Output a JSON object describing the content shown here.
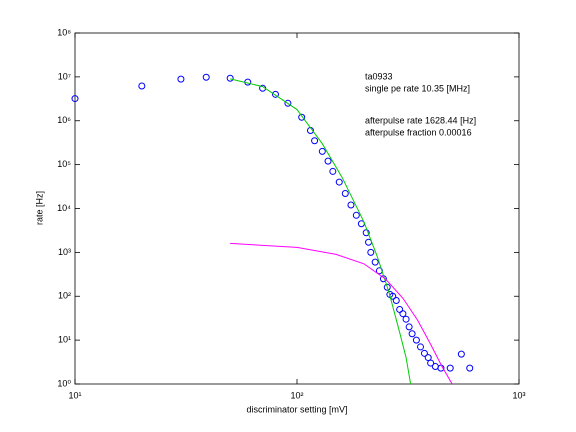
{
  "chart_data": {
    "type": "scatter",
    "xlabel": "discriminator setting [mV]",
    "ylabel": "rate [Hz]",
    "xscale": "log",
    "yscale": "log",
    "xlim": [
      10,
      1000
    ],
    "ylim": [
      1,
      100000000
    ],
    "xticks": [
      {
        "value": 10,
        "label": "10¹"
      },
      {
        "value": 100,
        "label": "10²"
      },
      {
        "value": 1000,
        "label": "10³"
      }
    ],
    "yticks": [
      {
        "value": 1,
        "label": "10⁰"
      },
      {
        "value": 10,
        "label": "10¹"
      },
      {
        "value": 100,
        "label": "10²"
      },
      {
        "value": 1000,
        "label": "10³"
      },
      {
        "value": 10000,
        "label": "10⁴"
      },
      {
        "value": 100000,
        "label": "10⁵"
      },
      {
        "value": 1000000,
        "label": "10⁶"
      },
      {
        "value": 10000000,
        "label": "10⁷"
      },
      {
        "value": 100000000,
        "label": "10⁸"
      }
    ],
    "annotations": [
      "ta0933",
      "single pe rate 10.35 [MHz]",
      "afterpulse rate 1628.44 [Hz]",
      "afterpulse fraction 0.00016"
    ],
    "series": [
      {
        "type": "scatter",
        "color": "#0000ff",
        "x": [
          10,
          20,
          30,
          39,
          50,
          60,
          70,
          80,
          91,
          105,
          115,
          120,
          130,
          138,
          145,
          155,
          165,
          175,
          185,
          195,
          205,
          210,
          215,
          225,
          235,
          245,
          255,
          262,
          270,
          280,
          290,
          300,
          310,
          320,
          330,
          345,
          360,
          375,
          390,
          400,
          420,
          445,
          490,
          550,
          600
        ],
        "values": [
          3200000,
          6200000,
          8900000,
          9800000,
          9300000,
          7600000,
          5500000,
          4000000,
          2500000,
          1200000,
          600000,
          350000,
          200000,
          120000,
          70000,
          40000,
          22000,
          12000,
          7000,
          4500,
          2800,
          1700,
          1000,
          600,
          380,
          250,
          160,
          110,
          100,
          80,
          50,
          40,
          30,
          20,
          14,
          10,
          7,
          5,
          4,
          3,
          2.5,
          2.3,
          2.3,
          4.8,
          2.3
        ]
      },
      {
        "type": "line",
        "color": "#00cc00",
        "x": [
          50,
          70,
          100,
          130,
          160,
          200,
          230,
          260,
          290,
          310,
          325
        ],
        "values": [
          9000000,
          6000000,
          1800000,
          300000,
          50000,
          5000,
          800,
          120,
          15,
          4,
          1
        ]
      },
      {
        "type": "line",
        "color": "#ff00ff",
        "x": [
          50,
          100,
          150,
          200,
          250,
          300,
          350,
          400,
          450,
          500
        ],
        "values": [
          1600,
          1300,
          900,
          550,
          250,
          90,
          28,
          8,
          2.5,
          1
        ]
      }
    ]
  }
}
